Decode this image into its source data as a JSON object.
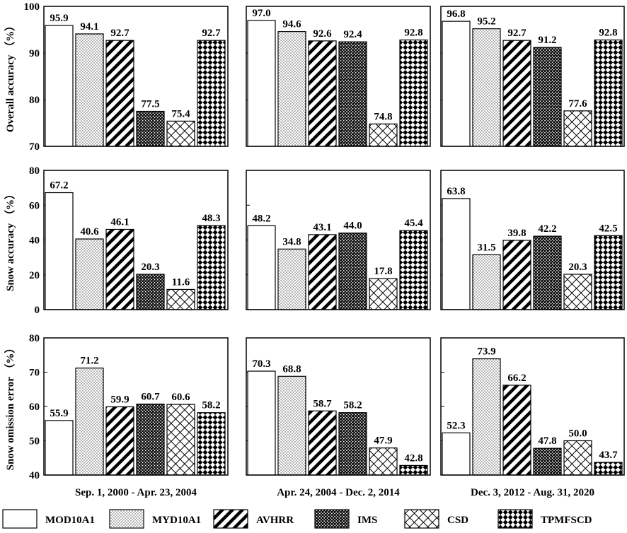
{
  "chart_data": {
    "type": "bar",
    "categories": [
      "MOD10A1",
      "MYD10A1",
      "AVHRR",
      "IMS",
      "CSD",
      "TPMFSCD"
    ],
    "periods": [
      "Sep. 1, 2000 - Apr. 23, 2004",
      "Apr. 24, 2004 - Dec. 2, 2014",
      "Dec. 3, 2012 - Aug. 31, 2020"
    ],
    "rows": [
      {
        "ylabel": "Overall accuracy （%）",
        "ylim": [
          70,
          100
        ],
        "ticks": [
          70,
          80,
          90,
          100
        ],
        "values": [
          [
            95.9,
            94.1,
            92.7,
            77.5,
            75.4,
            92.7
          ],
          [
            97.0,
            94.6,
            92.6,
            92.4,
            74.8,
            92.8
          ],
          [
            96.8,
            95.2,
            92.7,
            91.2,
            77.6,
            92.8
          ]
        ],
        "labels": [
          [
            "95.9",
            "94.1",
            "92.7",
            "77.5",
            "75.4",
            "92.7"
          ],
          [
            "97.0",
            "94.6",
            "92.6",
            "92.4",
            "74.8",
            "92.8"
          ],
          [
            "96.8",
            "95.2",
            "92.7",
            "91.2",
            "77.6",
            "92.8"
          ]
        ]
      },
      {
        "ylabel": "Snow accuracy （%）",
        "ylim": [
          0,
          80
        ],
        "ticks": [
          0,
          20,
          40,
          60,
          80
        ],
        "values": [
          [
            67.2,
            40.6,
            46.1,
            20.3,
            11.6,
            48.3
          ],
          [
            48.2,
            34.8,
            43.1,
            44.0,
            17.8,
            45.4
          ],
          [
            63.8,
            31.5,
            39.8,
            42.2,
            20.3,
            42.5
          ]
        ],
        "labels": [
          [
            "67.2",
            "40.6",
            "46.1",
            "20.3",
            "11.6",
            "48.3"
          ],
          [
            "48.2",
            "34.8",
            "43.1",
            "44.0",
            "17.8",
            "45.4"
          ],
          [
            "63.8",
            "31.5",
            "39.8",
            "42.2",
            "20.3",
            "42.5"
          ]
        ]
      },
      {
        "ylabel": "Snow omission error （%）",
        "ylim": [
          40,
          80
        ],
        "ticks": [
          40,
          50,
          60,
          70,
          80
        ],
        "values": [
          [
            55.9,
            71.2,
            59.9,
            60.7,
            60.6,
            58.2
          ],
          [
            70.3,
            68.8,
            58.7,
            58.2,
            47.9,
            42.8
          ],
          [
            52.3,
            73.9,
            66.2,
            47.8,
            50.0,
            43.7
          ]
        ],
        "labels": [
          [
            "55.9",
            "71.2",
            "59.9",
            "60.7",
            "60.6",
            "58.2"
          ],
          [
            "70.3",
            "68.8",
            "58.7",
            "58.2",
            "47.9",
            "42.8"
          ],
          [
            "52.3",
            "73.9",
            "66.2",
            "47.8",
            "50.0",
            "43.7"
          ]
        ]
      }
    ],
    "legend": [
      "MOD10A1",
      "MYD10A1",
      "AVHRR",
      "IMS",
      "CSD",
      "TPMFSCD"
    ],
    "legend_position": "bottom"
  }
}
